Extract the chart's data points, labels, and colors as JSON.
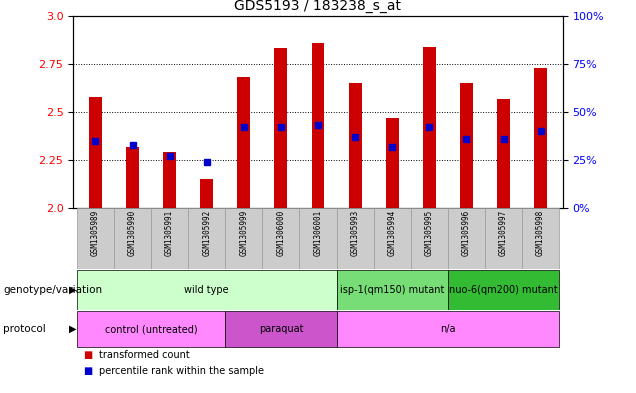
{
  "title": "GDS5193 / 183238_s_at",
  "samples": [
    "GSM1305989",
    "GSM1305990",
    "GSM1305991",
    "GSM1305992",
    "GSM1305999",
    "GSM1306000",
    "GSM1306001",
    "GSM1305993",
    "GSM1305994",
    "GSM1305995",
    "GSM1305996",
    "GSM1305997",
    "GSM1305998"
  ],
  "transformed_count": [
    2.58,
    2.32,
    2.29,
    2.15,
    2.68,
    2.83,
    2.86,
    2.65,
    2.47,
    2.84,
    2.65,
    2.57,
    2.73
  ],
  "percentile_rank": [
    35,
    33,
    27,
    24,
    42,
    42,
    43,
    37,
    32,
    42,
    36,
    36,
    40
  ],
  "ylim_left": [
    2.0,
    3.0
  ],
  "ylim_right": [
    0,
    100
  ],
  "yticks_left": [
    2.0,
    2.25,
    2.5,
    2.75,
    3.0
  ],
  "yticks_right": [
    0,
    25,
    50,
    75,
    100
  ],
  "bar_color": "#cc0000",
  "blue_color": "#0000cc",
  "genotype_groups": [
    {
      "label": "wild type",
      "start": 0,
      "end": 6,
      "color": "#ccffcc"
    },
    {
      "label": "isp-1(qm150) mutant",
      "start": 7,
      "end": 9,
      "color": "#77dd77"
    },
    {
      "label": "nuo-6(qm200) mutant",
      "start": 10,
      "end": 12,
      "color": "#33bb33"
    }
  ],
  "protocol_groups": [
    {
      "label": "control (untreated)",
      "start": 0,
      "end": 3,
      "color": "#ff88ff"
    },
    {
      "label": "paraquat",
      "start": 4,
      "end": 6,
      "color": "#cc55cc"
    },
    {
      "label": "n/a",
      "start": 7,
      "end": 12,
      "color": "#ff88ff"
    }
  ],
  "legend_items": [
    {
      "label": "transformed count",
      "color": "#cc0000"
    },
    {
      "label": "percentile rank within the sample",
      "color": "#0000cc"
    }
  ],
  "tick_bg_color": "#cccccc",
  "tick_border_color": "#999999"
}
